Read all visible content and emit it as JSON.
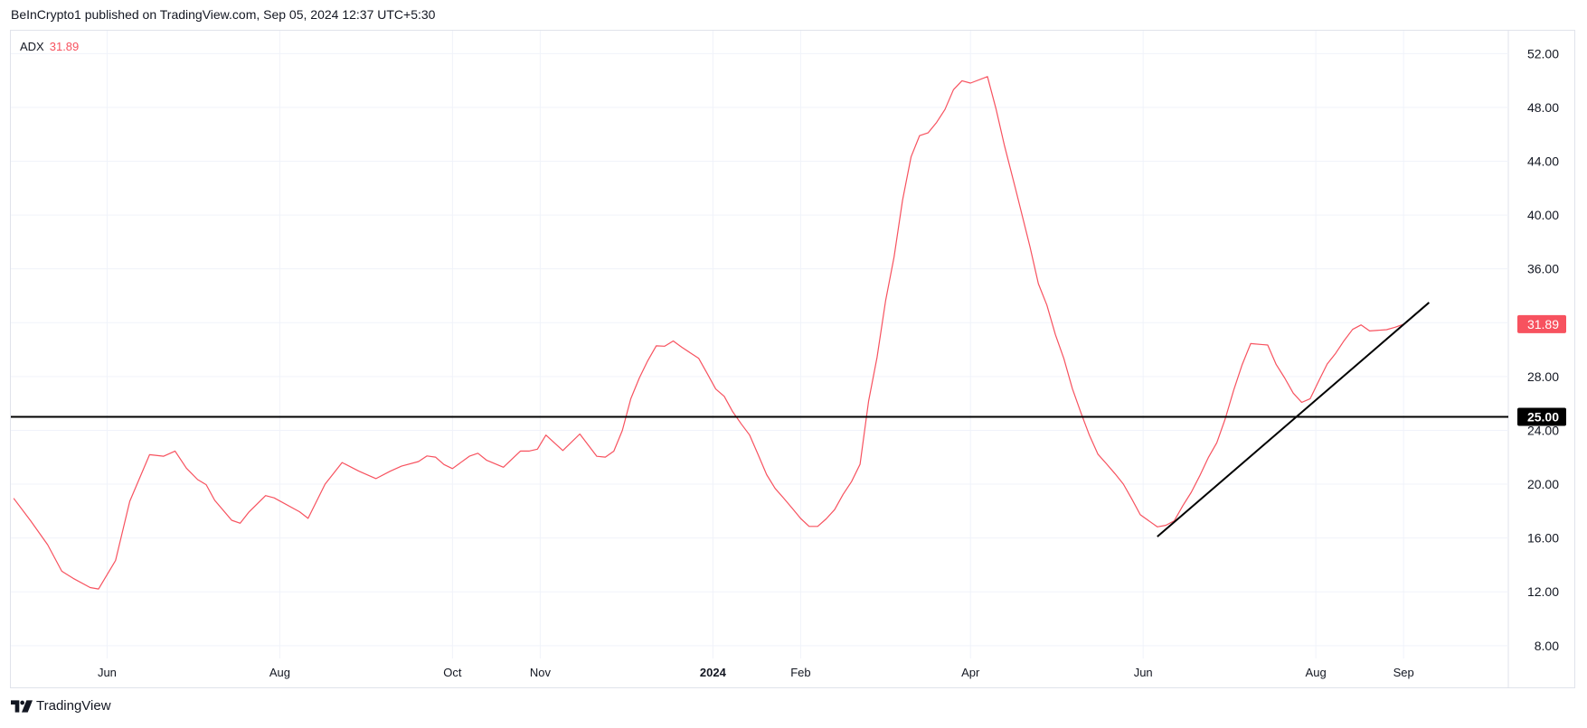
{
  "header": {
    "publisher_text": "BeInCrypto1 published on TradingView.com, Sep 05, 2024 12:37 UTC+5:30"
  },
  "legend": {
    "indicator": "ADX",
    "value": "31.89",
    "color": "#f7525f"
  },
  "footer": {
    "brand": "TradingView",
    "logo_icon": "tradingview-logo"
  },
  "colors": {
    "series": "#f7525f",
    "grid": "#f0f3fa",
    "lines": "#000000",
    "last_value_badge": "#f7525f"
  },
  "chart_data": {
    "type": "line",
    "title": "",
    "xlabel": "",
    "ylabel": "",
    "xlim": [
      "2023-04-28",
      "2024-10-08"
    ],
    "ylim": [
      4.9,
      53.7
    ],
    "grid": true,
    "y_ticks": [
      "52.00",
      "48.00",
      "44.00",
      "40.00",
      "36.00",
      "28.00",
      "24.00",
      "20.00",
      "16.00",
      "12.00",
      "8.00"
    ],
    "x_ticks": [
      {
        "label": "Jun",
        "date": "2023-06-01",
        "bold": false
      },
      {
        "label": "Aug",
        "date": "2023-08-01",
        "bold": false
      },
      {
        "label": "Oct",
        "date": "2023-10-01",
        "bold": false
      },
      {
        "label": "Nov",
        "date": "2023-11-01",
        "bold": false
      },
      {
        "label": "2024",
        "date": "2024-01-01",
        "bold": true
      },
      {
        "label": "Feb",
        "date": "2024-02-01",
        "bold": false
      },
      {
        "label": "Apr",
        "date": "2024-04-01",
        "bold": false
      },
      {
        "label": "Jun",
        "date": "2024-06-01",
        "bold": false
      },
      {
        "label": "Aug",
        "date": "2024-08-01",
        "bold": false
      },
      {
        "label": "Sep",
        "date": "2024-09-01",
        "bold": false
      }
    ],
    "series": [
      {
        "name": "ADX",
        "color": "#f7525f",
        "last_value_label": "31.89",
        "points": [
          [
            "2023-04-29",
            18.95
          ],
          [
            "2023-05-05",
            17.28
          ],
          [
            "2023-05-11",
            15.5
          ],
          [
            "2023-05-16",
            13.53
          ],
          [
            "2023-05-20",
            13.0
          ],
          [
            "2023-05-26",
            12.32
          ],
          [
            "2023-05-29",
            12.21
          ],
          [
            "2023-06-04",
            14.33
          ],
          [
            "2023-06-09",
            18.73
          ],
          [
            "2023-06-16",
            22.19
          ],
          [
            "2023-06-21",
            22.08
          ],
          [
            "2023-06-25",
            22.46
          ],
          [
            "2023-06-29",
            21.19
          ],
          [
            "2023-07-03",
            20.34
          ],
          [
            "2023-07-06",
            19.96
          ],
          [
            "2023-07-09",
            18.8
          ],
          [
            "2023-07-15",
            17.32
          ],
          [
            "2023-07-18",
            17.1
          ],
          [
            "2023-07-21",
            17.91
          ],
          [
            "2023-07-27",
            19.15
          ],
          [
            "2023-07-30",
            18.98
          ],
          [
            "2023-08-08",
            17.95
          ],
          [
            "2023-08-11",
            17.46
          ],
          [
            "2023-08-17",
            20.0
          ],
          [
            "2023-08-23",
            21.61
          ],
          [
            "2023-08-29",
            20.96
          ],
          [
            "2023-09-04",
            20.41
          ],
          [
            "2023-09-09",
            20.96
          ],
          [
            "2023-09-13",
            21.34
          ],
          [
            "2023-09-19",
            21.68
          ],
          [
            "2023-09-22",
            22.1
          ],
          [
            "2023-09-25",
            22.01
          ],
          [
            "2023-09-28",
            21.46
          ],
          [
            "2023-10-01",
            21.16
          ],
          [
            "2023-10-07",
            22.08
          ],
          [
            "2023-10-10",
            22.3
          ],
          [
            "2023-10-13",
            21.79
          ],
          [
            "2023-10-19",
            21.26
          ],
          [
            "2023-10-25",
            22.46
          ],
          [
            "2023-10-28",
            22.46
          ],
          [
            "2023-10-31",
            22.6
          ],
          [
            "2023-11-03",
            23.65
          ],
          [
            "2023-11-09",
            22.5
          ],
          [
            "2023-11-15",
            23.73
          ],
          [
            "2023-11-21",
            22.07
          ],
          [
            "2023-11-24",
            22.01
          ],
          [
            "2023-11-27",
            22.45
          ],
          [
            "2023-11-30",
            23.99
          ],
          [
            "2023-12-03",
            26.35
          ],
          [
            "2023-12-06",
            27.89
          ],
          [
            "2023-12-09",
            29.17
          ],
          [
            "2023-12-12",
            30.28
          ],
          [
            "2023-12-15",
            30.25
          ],
          [
            "2023-12-18",
            30.64
          ],
          [
            "2023-12-21",
            30.18
          ],
          [
            "2023-12-24",
            29.76
          ],
          [
            "2023-12-27",
            29.35
          ],
          [
            "2023-12-30",
            28.22
          ],
          [
            "2024-01-02",
            27.07
          ],
          [
            "2024-01-05",
            26.53
          ],
          [
            "2024-01-08",
            25.38
          ],
          [
            "2024-01-11",
            24.48
          ],
          [
            "2024-01-14",
            23.65
          ],
          [
            "2024-01-17",
            22.19
          ],
          [
            "2024-01-20",
            20.71
          ],
          [
            "2024-01-23",
            19.68
          ],
          [
            "2024-01-26",
            18.96
          ],
          [
            "2024-01-29",
            18.22
          ],
          [
            "2024-02-01",
            17.45
          ],
          [
            "2024-02-04",
            16.86
          ],
          [
            "2024-02-07",
            16.86
          ],
          [
            "2024-02-10",
            17.42
          ],
          [
            "2024-02-13",
            18.11
          ],
          [
            "2024-02-16",
            19.24
          ],
          [
            "2024-02-19",
            20.19
          ],
          [
            "2024-02-22",
            21.48
          ],
          [
            "2024-02-25",
            26.15
          ],
          [
            "2024-02-28",
            29.43
          ],
          [
            "2024-03-02",
            33.61
          ],
          [
            "2024-03-05",
            36.88
          ],
          [
            "2024-03-08",
            41.11
          ],
          [
            "2024-03-11",
            44.32
          ],
          [
            "2024-03-14",
            45.9
          ],
          [
            "2024-03-17",
            46.11
          ],
          [
            "2024-03-20",
            46.88
          ],
          [
            "2024-03-23",
            47.85
          ],
          [
            "2024-03-26",
            49.32
          ],
          [
            "2024-03-29",
            49.98
          ],
          [
            "2024-04-01",
            49.81
          ],
          [
            "2024-04-07",
            50.29
          ],
          [
            "2024-04-10",
            47.91
          ],
          [
            "2024-04-13",
            45.16
          ],
          [
            "2024-04-17",
            41.88
          ],
          [
            "2024-04-22",
            37.65
          ],
          [
            "2024-04-25",
            34.9
          ],
          [
            "2024-04-28",
            33.31
          ],
          [
            "2024-05-01",
            31.12
          ],
          [
            "2024-05-04",
            29.33
          ],
          [
            "2024-05-07",
            27.1
          ],
          [
            "2024-05-10",
            25.32
          ],
          [
            "2024-05-13",
            23.64
          ],
          [
            "2024-05-16",
            22.23
          ],
          [
            "2024-05-19",
            21.52
          ],
          [
            "2024-05-22",
            20.79
          ],
          [
            "2024-05-25",
            20.0
          ],
          [
            "2024-05-28",
            18.89
          ],
          [
            "2024-05-31",
            17.73
          ],
          [
            "2024-06-06",
            16.83
          ],
          [
            "2024-06-09",
            16.94
          ],
          [
            "2024-06-12",
            17.28
          ],
          [
            "2024-06-15",
            18.4
          ],
          [
            "2024-06-18",
            19.4
          ],
          [
            "2024-06-21",
            20.63
          ],
          [
            "2024-06-24",
            21.97
          ],
          [
            "2024-06-27",
            23.08
          ],
          [
            "2024-06-30",
            24.87
          ],
          [
            "2024-07-03",
            26.99
          ],
          [
            "2024-07-06",
            28.89
          ],
          [
            "2024-07-09",
            30.45
          ],
          [
            "2024-07-15",
            30.34
          ],
          [
            "2024-07-18",
            28.89
          ],
          [
            "2024-07-21",
            27.89
          ],
          [
            "2024-07-24",
            26.77
          ],
          [
            "2024-07-27",
            26.08
          ],
          [
            "2024-07-30",
            26.35
          ],
          [
            "2024-08-02",
            27.66
          ],
          [
            "2024-08-05",
            28.93
          ],
          [
            "2024-08-08",
            29.72
          ],
          [
            "2024-08-11",
            30.67
          ],
          [
            "2024-08-14",
            31.5
          ],
          [
            "2024-08-17",
            31.84
          ],
          [
            "2024-08-20",
            31.39
          ],
          [
            "2024-08-26",
            31.48
          ],
          [
            "2024-08-29",
            31.66
          ],
          [
            "2024-09-01",
            31.89
          ]
        ]
      }
    ],
    "annotations": {
      "horizontal_line": {
        "value": 25.0,
        "label": "25.00",
        "color": "#000000"
      },
      "trend_line": {
        "start": [
          "2024-06-06",
          16.1
        ],
        "end": [
          "2024-09-10",
          33.5
        ],
        "color": "#000000"
      }
    }
  }
}
